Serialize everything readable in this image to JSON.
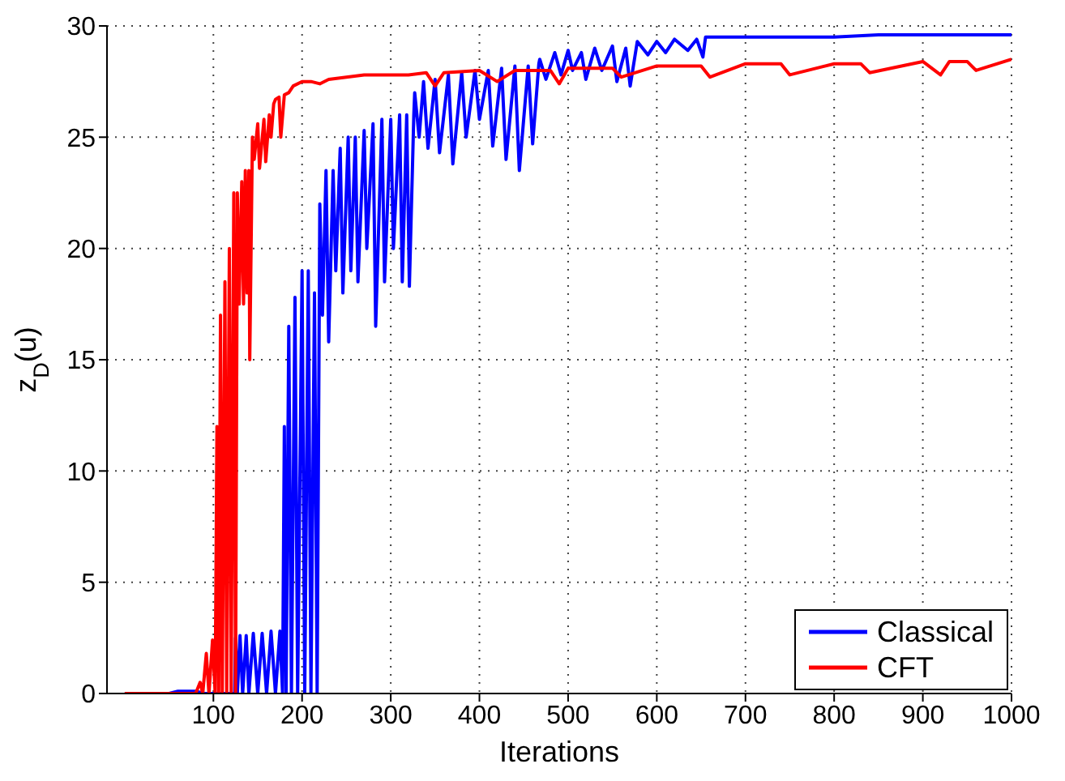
{
  "chart_data": {
    "type": "line",
    "xlabel": "Iterations",
    "ylabel": "z$_{D}$(u)",
    "xlim": [
      -20,
      1000
    ],
    "xticks": [
      100,
      200,
      300,
      400,
      500,
      600,
      700,
      800,
      900,
      1000
    ],
    "ylim": [
      0,
      30
    ],
    "yticks": [
      0,
      5,
      10,
      15,
      20,
      25,
      30
    ],
    "grid": true,
    "legend": "bottom right",
    "line_style": "solid",
    "marker": "none",
    "series": [
      {
        "name": "Classical",
        "color": "#0000ff",
        "x": [
          0,
          50,
          60,
          80,
          90,
          124,
          125,
          127,
          130,
          133,
          137,
          140,
          145,
          150,
          155,
          160,
          165,
          170,
          175,
          178,
          180,
          182,
          185,
          188,
          192,
          195,
          200,
          203,
          207,
          210,
          214,
          217,
          220,
          223,
          227,
          230,
          235,
          238,
          243,
          246,
          252,
          255,
          260,
          263,
          270,
          273,
          280,
          283,
          290,
          293,
          300,
          303,
          310,
          313,
          318,
          321,
          326,
          327,
          332,
          337,
          342,
          350,
          355,
          365,
          370,
          380,
          385,
          395,
          400,
          410,
          415,
          425,
          430,
          440,
          445,
          455,
          460,
          467,
          468,
          475,
          485,
          492,
          500,
          505,
          515,
          520,
          530,
          538,
          550,
          555,
          565,
          570,
          578,
          590,
          600,
          610,
          620,
          635,
          645,
          652,
          655,
          700,
          750,
          800,
          850,
          900,
          950,
          1000
        ],
        "values": [
          0,
          0,
          0.1,
          0.1,
          0,
          0,
          2.5,
          0,
          2.6,
          0,
          2.6,
          0,
          2.7,
          0,
          2.7,
          0,
          2.8,
          0,
          2.8,
          0,
          12,
          0,
          16.5,
          0,
          17.8,
          0,
          19,
          0,
          19,
          0,
          18,
          0,
          22,
          17,
          23.5,
          15.8,
          23.5,
          19,
          24.5,
          18,
          25,
          19,
          25,
          18.5,
          25.3,
          20,
          25.6,
          16.5,
          25.8,
          18.5,
          25.8,
          20,
          26,
          18.5,
          26,
          18.3,
          26,
          27,
          25,
          27.5,
          24.5,
          27.6,
          24.3,
          27.8,
          23.8,
          27.9,
          25,
          28,
          25.8,
          28,
          24.6,
          28.1,
          24,
          28.2,
          23.5,
          28.2,
          24.7,
          28.3,
          28.5,
          27.6,
          28.8,
          27.8,
          28.9,
          28,
          28.8,
          27.6,
          29,
          28,
          29.1,
          27.5,
          29,
          27.3,
          29.3,
          28.7,
          29.3,
          28.8,
          29.4,
          28.9,
          29.4,
          28.6,
          29.5,
          29.5,
          29.5,
          29.5,
          29.6,
          29.6,
          29.6,
          29.6
        ]
      },
      {
        "name": "CFT",
        "color": "#ff0000",
        "x": [
          0,
          80,
          85,
          88,
          92,
          95,
          99,
          102,
          104,
          106,
          108,
          110,
          113,
          115,
          118,
          120,
          123,
          125,
          127,
          129,
          132,
          134,
          136,
          138,
          140,
          141,
          144,
          146,
          150,
          152,
          157,
          159,
          163,
          165,
          168,
          170,
          174,
          176,
          180,
          185,
          190,
          200,
          210,
          220,
          230,
          250,
          270,
          300,
          320,
          340,
          350,
          360,
          400,
          420,
          440,
          460,
          480,
          490,
          500,
          550,
          560,
          600,
          650,
          660,
          700,
          740,
          750,
          800,
          830,
          840,
          900,
          920,
          930,
          950,
          960,
          1000
        ],
        "values": [
          0,
          0,
          0.5,
          0,
          1.8,
          0,
          2.4,
          0,
          12,
          0,
          17,
          0,
          18.5,
          0,
          20,
          0,
          22.5,
          0,
          22.5,
          17.5,
          23,
          17.5,
          23.5,
          18,
          23.5,
          15,
          25,
          24,
          25.6,
          23.6,
          25.8,
          23.9,
          26,
          25,
          26.5,
          26.7,
          26.8,
          25,
          26.9,
          27,
          27.3,
          27.5,
          27.5,
          27.4,
          27.6,
          27.7,
          27.8,
          27.8,
          27.8,
          27.9,
          27.3,
          27.9,
          28,
          27.5,
          28,
          28,
          28,
          27.4,
          28.1,
          28.1,
          27.7,
          28.2,
          28.2,
          27.7,
          28.3,
          28.3,
          27.8,
          28.3,
          28.3,
          27.9,
          28.4,
          27.8,
          28.4,
          28.4,
          28,
          28.5
        ]
      }
    ]
  }
}
